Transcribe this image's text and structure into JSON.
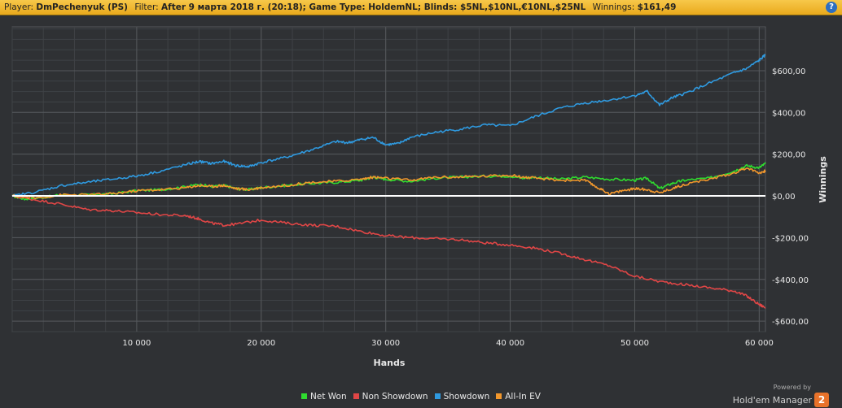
{
  "header": {
    "player_label": "Player:",
    "player_value": "DmPechenyuk (PS)",
    "filter_label": "Filter:",
    "filter_value": "After 9 марта 2018 г. (20:18); Game Type: HoldemNL; Blinds: $5NL,$10NL,€10NL,$25NL",
    "winnings_label": "Winnings:",
    "winnings_value": "$161,49",
    "help_icon_glyph": "?"
  },
  "brand": {
    "powered_by": "Powered by",
    "name": "Hold'em Manager",
    "version_badge": "2"
  },
  "chart_data": {
    "type": "line",
    "xlabel": "Hands",
    "ylabel": "Winnings",
    "xlim": [
      0,
      60500
    ],
    "ylim": [
      -650,
      810
    ],
    "x_ticks": [
      10000,
      20000,
      30000,
      40000,
      50000,
      60000
    ],
    "x_tick_labels": [
      "10 000",
      "20 000",
      "30 000",
      "40 000",
      "50 000",
      "60 000"
    ],
    "y_ticks": [
      600,
      400,
      200,
      0,
      -200,
      -400,
      -600
    ],
    "y_tick_labels": [
      "$600,00",
      "$400,00",
      "$200,00",
      "$0,00",
      "-$200,00",
      "-$400,00",
      "-$600,00"
    ],
    "grid": true,
    "legend_position": "bottom-center",
    "background": "#2f3134",
    "series": [
      {
        "name": "Net Won",
        "color": "#2fdc2f",
        "points": [
          [
            0,
            0
          ],
          [
            1000,
            -15
          ],
          [
            2000,
            -10
          ],
          [
            4000,
            5
          ],
          [
            6000,
            5
          ],
          [
            8000,
            10
          ],
          [
            10000,
            25
          ],
          [
            12000,
            30
          ],
          [
            14000,
            45
          ],
          [
            15000,
            55
          ],
          [
            16000,
            45
          ],
          [
            17000,
            50
          ],
          [
            18000,
            35
          ],
          [
            19000,
            30
          ],
          [
            20000,
            40
          ],
          [
            22000,
            50
          ],
          [
            24000,
            60
          ],
          [
            26000,
            65
          ],
          [
            28000,
            75
          ],
          [
            29000,
            90
          ],
          [
            30000,
            80
          ],
          [
            32000,
            70
          ],
          [
            34000,
            85
          ],
          [
            36000,
            90
          ],
          [
            38000,
            95
          ],
          [
            40000,
            95
          ],
          [
            41000,
            85
          ],
          [
            42000,
            90
          ],
          [
            44000,
            80
          ],
          [
            46000,
            90
          ],
          [
            48000,
            80
          ],
          [
            50000,
            75
          ],
          [
            51000,
            85
          ],
          [
            52000,
            35
          ],
          [
            53000,
            60
          ],
          [
            54000,
            75
          ],
          [
            56000,
            85
          ],
          [
            58000,
            120
          ],
          [
            59000,
            145
          ],
          [
            60000,
            135
          ],
          [
            60500,
            155
          ]
        ]
      },
      {
        "name": "Non Showdown",
        "color": "#e04646",
        "points": [
          [
            0,
            0
          ],
          [
            2000,
            -20
          ],
          [
            4000,
            -40
          ],
          [
            6000,
            -65
          ],
          [
            8000,
            -70
          ],
          [
            10000,
            -80
          ],
          [
            12000,
            -90
          ],
          [
            14000,
            -95
          ],
          [
            15000,
            -110
          ],
          [
            16000,
            -130
          ],
          [
            17000,
            -140
          ],
          [
            18000,
            -135
          ],
          [
            20000,
            -115
          ],
          [
            22000,
            -130
          ],
          [
            24000,
            -140
          ],
          [
            26000,
            -145
          ],
          [
            28000,
            -170
          ],
          [
            30000,
            -190
          ],
          [
            32000,
            -200
          ],
          [
            34000,
            -205
          ],
          [
            36000,
            -210
          ],
          [
            38000,
            -225
          ],
          [
            40000,
            -235
          ],
          [
            42000,
            -250
          ],
          [
            44000,
            -275
          ],
          [
            46000,
            -305
          ],
          [
            48000,
            -335
          ],
          [
            50000,
            -385
          ],
          [
            52000,
            -410
          ],
          [
            54000,
            -425
          ],
          [
            56000,
            -440
          ],
          [
            58000,
            -455
          ],
          [
            59000,
            -480
          ],
          [
            60000,
            -520
          ],
          [
            60500,
            -535
          ]
        ]
      },
      {
        "name": "Showdown",
        "color": "#2f9ae0",
        "points": [
          [
            0,
            0
          ],
          [
            2000,
            20
          ],
          [
            4000,
            50
          ],
          [
            6000,
            65
          ],
          [
            8000,
            80
          ],
          [
            10000,
            95
          ],
          [
            12000,
            120
          ],
          [
            14000,
            150
          ],
          [
            15000,
            165
          ],
          [
            16000,
            155
          ],
          [
            17000,
            165
          ],
          [
            18000,
            145
          ],
          [
            19000,
            140
          ],
          [
            20000,
            160
          ],
          [
            22000,
            185
          ],
          [
            24000,
            220
          ],
          [
            26000,
            260
          ],
          [
            27000,
            255
          ],
          [
            28000,
            270
          ],
          [
            29000,
            280
          ],
          [
            30000,
            245
          ],
          [
            31000,
            250
          ],
          [
            32000,
            280
          ],
          [
            34000,
            305
          ],
          [
            36000,
            320
          ],
          [
            38000,
            340
          ],
          [
            40000,
            335
          ],
          [
            42000,
            380
          ],
          [
            44000,
            420
          ],
          [
            46000,
            445
          ],
          [
            48000,
            460
          ],
          [
            50000,
            480
          ],
          [
            51000,
            500
          ],
          [
            52000,
            435
          ],
          [
            53000,
            470
          ],
          [
            54000,
            490
          ],
          [
            56000,
            540
          ],
          [
            58000,
            590
          ],
          [
            59000,
            610
          ],
          [
            60000,
            650
          ],
          [
            60500,
            675
          ]
        ]
      },
      {
        "name": "All-In EV",
        "color": "#f2972c",
        "points": [
          [
            0,
            0
          ],
          [
            2000,
            -10
          ],
          [
            4000,
            5
          ],
          [
            6000,
            5
          ],
          [
            8000,
            10
          ],
          [
            10000,
            25
          ],
          [
            12000,
            30
          ],
          [
            14000,
            40
          ],
          [
            15000,
            50
          ],
          [
            16000,
            45
          ],
          [
            17000,
            50
          ],
          [
            18000,
            35
          ],
          [
            19000,
            30
          ],
          [
            20000,
            40
          ],
          [
            22000,
            50
          ],
          [
            24000,
            65
          ],
          [
            26000,
            70
          ],
          [
            28000,
            80
          ],
          [
            29000,
            90
          ],
          [
            30000,
            85
          ],
          [
            32000,
            75
          ],
          [
            34000,
            90
          ],
          [
            36000,
            90
          ],
          [
            38000,
            95
          ],
          [
            40000,
            100
          ],
          [
            41000,
            90
          ],
          [
            42000,
            85
          ],
          [
            44000,
            75
          ],
          [
            46000,
            75
          ],
          [
            47000,
            40
          ],
          [
            48000,
            10
          ],
          [
            49000,
            25
          ],
          [
            50000,
            35
          ],
          [
            51000,
            30
          ],
          [
            52000,
            15
          ],
          [
            53000,
            35
          ],
          [
            54000,
            55
          ],
          [
            56000,
            80
          ],
          [
            58000,
            110
          ],
          [
            59000,
            135
          ],
          [
            60000,
            110
          ],
          [
            60500,
            120
          ]
        ]
      }
    ]
  }
}
